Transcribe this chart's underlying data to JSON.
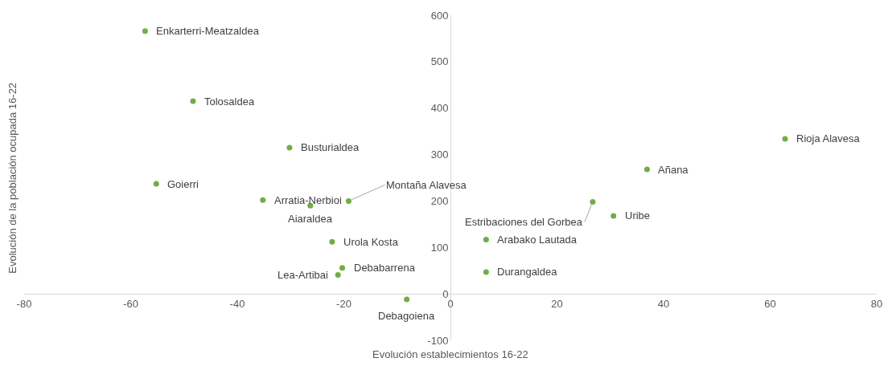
{
  "chart_data": {
    "type": "scatter",
    "xlabel": "Evolución establecimientos 16-22",
    "ylabel": "Evolución de la población ocupada 16-22",
    "x": [
      -57.3,
      -48.3,
      -30.2,
      -55.2,
      -35.2,
      -26.3,
      -19.1,
      -22.2,
      -21.1,
      -20.3,
      -8.2,
      6.7,
      6.7,
      26.7,
      30.6,
      36.9,
      62.8
    ],
    "series": [
      {
        "color": "#70ad47",
        "values": [
          566,
          415,
          315,
          237,
          202,
          190,
          200,
          112,
          41,
          56,
          -12,
          47,
          117,
          198,
          168,
          268,
          334
        ]
      }
    ],
    "annotations": [
      {
        "text": "Enkarterri-Meatzaldea",
        "x": -57.3,
        "y": 566
      },
      {
        "text": "Tolosaldea",
        "x": -48.3,
        "y": 415
      },
      {
        "text": "Busturialdea",
        "x": -30.2,
        "y": 315
      },
      {
        "text": "Goierri",
        "x": -55.2,
        "y": 237
      },
      {
        "text": "Arratia-Nerbioi",
        "x": -35.2,
        "y": 202
      },
      {
        "text": "Aiaraldea",
        "x": -26.3,
        "y": 190
      },
      {
        "text": "Montaña Alavesa",
        "x": -19.1,
        "y": 200
      },
      {
        "text": "Urola Kosta",
        "x": -22.2,
        "y": 112
      },
      {
        "text": "Lea-Artibai",
        "x": -21.1,
        "y": 41
      },
      {
        "text": "Debabarrena",
        "x": -20.3,
        "y": 56
      },
      {
        "text": "Debagoiena",
        "x": -8.2,
        "y": -12
      },
      {
        "text": "Durangaldea",
        "x": 6.7,
        "y": 47
      },
      {
        "text": "Arabako Lautada",
        "x": 6.7,
        "y": 117
      },
      {
        "text": "Estribaciones del Gorbea",
        "x": 26.7,
        "y": 198
      },
      {
        "text": "Uribe",
        "x": 30.6,
        "y": 168
      },
      {
        "text": "Añana",
        "x": 36.9,
        "y": 268
      },
      {
        "text": "Rioja Alavesa",
        "x": 62.8,
        "y": 334
      }
    ],
    "xlim": [
      -80,
      80
    ],
    "xticks": [
      -80,
      -60,
      -40,
      -20,
      0,
      20,
      40,
      60,
      80
    ],
    "ylim": [
      -100,
      600
    ],
    "yticks": [
      -100,
      0,
      100,
      200,
      300,
      400,
      500,
      600
    ],
    "marker": "circle"
  }
}
